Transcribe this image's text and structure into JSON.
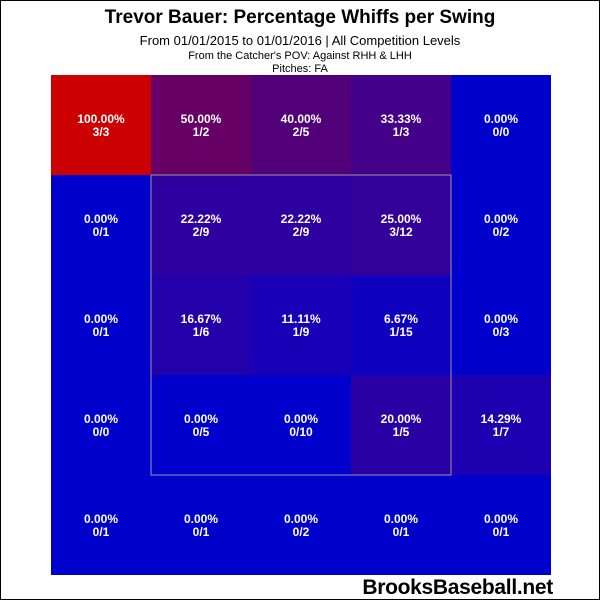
{
  "title": "Trevor Bauer: Percentage Whiffs per Swing",
  "subtitle": "From 01/01/2015 to 01/01/2016 | All Competition Levels",
  "pov": "From the Catcher's POV:  Against RHH & LHH",
  "pitches": "Pitches:  FA",
  "watermark": "BrooksBaseball.net",
  "colors": {
    "low": "#0000cc",
    "high": "#cc0000",
    "strike_zone_border": "#999999"
  },
  "chart_data": {
    "type": "heatmap",
    "title": "Trevor Bauer: Percentage Whiffs per Swing",
    "rows": 5,
    "cols": 5,
    "strike_zone": {
      "rows": [
        1,
        3
      ],
      "cols": [
        1,
        3
      ]
    },
    "cells": [
      [
        {
          "pct": "100.00%",
          "frac": "3/3",
          "value": 100.0
        },
        {
          "pct": "50.00%",
          "frac": "1/2",
          "value": 50.0
        },
        {
          "pct": "40.00%",
          "frac": "2/5",
          "value": 40.0
        },
        {
          "pct": "33.33%",
          "frac": "1/3",
          "value": 33.33
        },
        {
          "pct": "0.00%",
          "frac": "0/0",
          "value": 0.0
        }
      ],
      [
        {
          "pct": "0.00%",
          "frac": "0/1",
          "value": 0.0
        },
        {
          "pct": "22.22%",
          "frac": "2/9",
          "value": 22.22
        },
        {
          "pct": "22.22%",
          "frac": "2/9",
          "value": 22.22
        },
        {
          "pct": "25.00%",
          "frac": "3/12",
          "value": 25.0
        },
        {
          "pct": "0.00%",
          "frac": "0/2",
          "value": 0.0
        }
      ],
      [
        {
          "pct": "0.00%",
          "frac": "0/1",
          "value": 0.0
        },
        {
          "pct": "16.67%",
          "frac": "1/6",
          "value": 16.67
        },
        {
          "pct": "11.11%",
          "frac": "1/9",
          "value": 11.11
        },
        {
          "pct": "6.67%",
          "frac": "1/15",
          "value": 6.67
        },
        {
          "pct": "0.00%",
          "frac": "0/3",
          "value": 0.0
        }
      ],
      [
        {
          "pct": "0.00%",
          "frac": "0/0",
          "value": 0.0
        },
        {
          "pct": "0.00%",
          "frac": "0/5",
          "value": 0.0
        },
        {
          "pct": "0.00%",
          "frac": "0/10",
          "value": 0.0
        },
        {
          "pct": "20.00%",
          "frac": "1/5",
          "value": 20.0
        },
        {
          "pct": "14.29%",
          "frac": "1/7",
          "value": 14.29
        }
      ],
      [
        {
          "pct": "0.00%",
          "frac": "0/1",
          "value": 0.0
        },
        {
          "pct": "0.00%",
          "frac": "0/1",
          "value": 0.0
        },
        {
          "pct": "0.00%",
          "frac": "0/2",
          "value": 0.0
        },
        {
          "pct": "0.00%",
          "frac": "0/1",
          "value": 0.0
        },
        {
          "pct": "0.00%",
          "frac": "0/1",
          "value": 0.0
        }
      ]
    ]
  }
}
